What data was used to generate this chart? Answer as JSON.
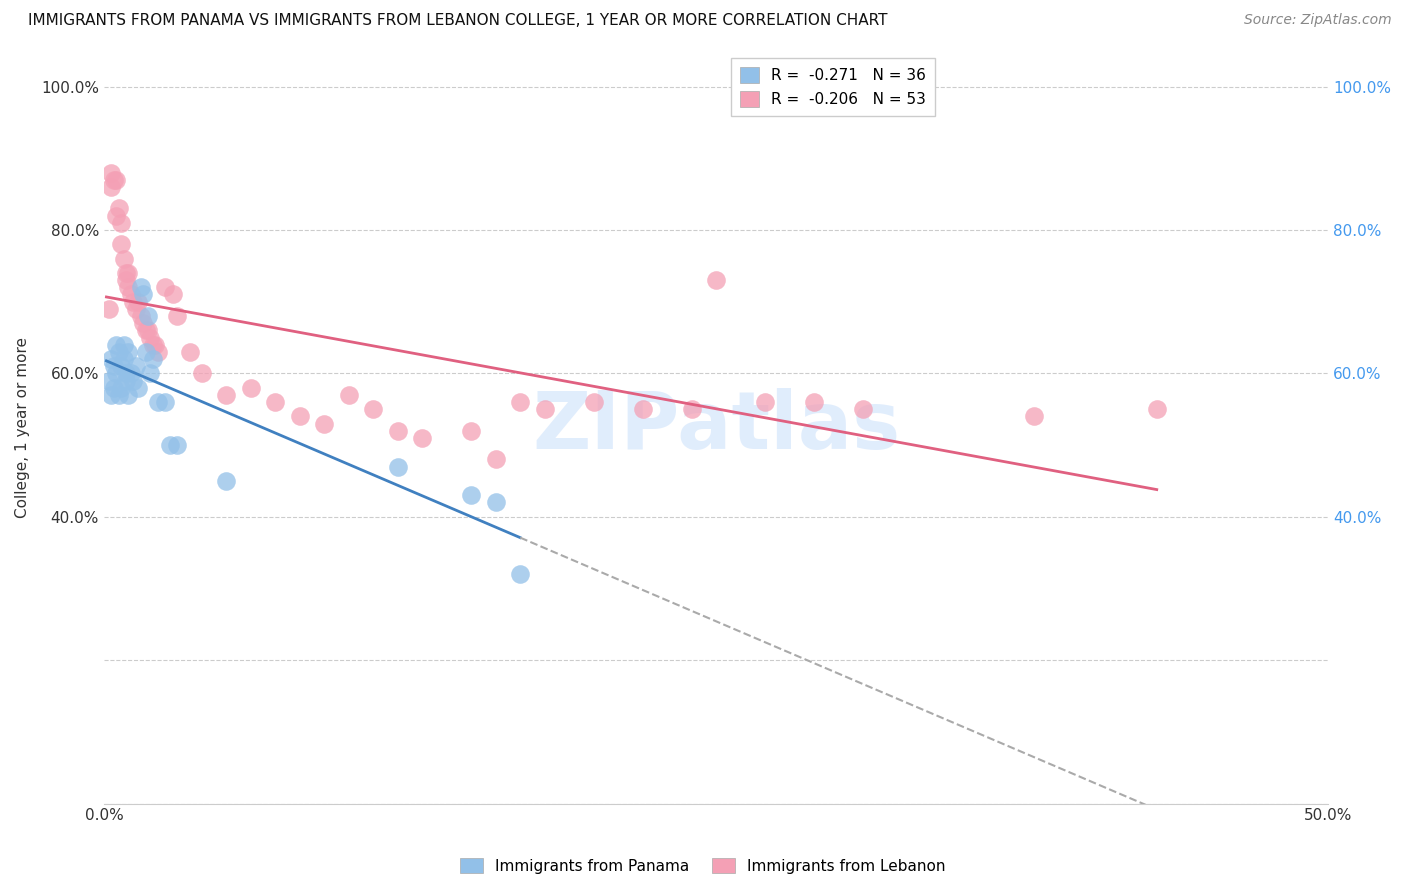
{
  "title": "IMMIGRANTS FROM PANAMA VS IMMIGRANTS FROM LEBANON COLLEGE, 1 YEAR OR MORE CORRELATION CHART",
  "source": "Source: ZipAtlas.com",
  "ylabel": "College, 1 year or more",
  "xlim": [
    0.0,
    0.5
  ],
  "ylim": [
    0.0,
    1.05
  ],
  "xticks": [
    0.0,
    0.05,
    0.1,
    0.15,
    0.2,
    0.25,
    0.3,
    0.35,
    0.4,
    0.45,
    0.5
  ],
  "xticklabels": [
    "0.0%",
    "",
    "",
    "",
    "",
    "",
    "",
    "",
    "",
    "",
    "50.0%"
  ],
  "yticks_left": [
    0.0,
    0.2,
    0.4,
    0.6,
    0.8,
    1.0
  ],
  "yticklabels_left": [
    "",
    "",
    "40.0%",
    "60.0%",
    "80.0%",
    "100.0%"
  ],
  "yticks_right": [
    0.4,
    0.6,
    0.8,
    1.0
  ],
  "yticklabels_right": [
    "40.0%",
    "60.0%",
    "80.0%",
    "100.0%"
  ],
  "legend_panama": "R =  -0.271   N = 36",
  "legend_lebanon": "R =  -0.206   N = 53",
  "color_panama": "#92C0E8",
  "color_lebanon": "#F4A0B5",
  "line_color_panama": "#4080C0",
  "line_color_lebanon": "#E06080",
  "line_color_dash": "#AAAAAA",
  "watermark": "ZIPatlas",
  "panama_x": [
    0.002,
    0.003,
    0.003,
    0.004,
    0.004,
    0.005,
    0.005,
    0.006,
    0.006,
    0.007,
    0.007,
    0.008,
    0.008,
    0.009,
    0.009,
    0.01,
    0.01,
    0.011,
    0.012,
    0.013,
    0.014,
    0.015,
    0.016,
    0.017,
    0.018,
    0.019,
    0.02,
    0.022,
    0.025,
    0.027,
    0.03,
    0.05,
    0.12,
    0.15,
    0.16,
    0.17
  ],
  "panama_y": [
    0.59,
    0.57,
    0.62,
    0.61,
    0.58,
    0.64,
    0.6,
    0.63,
    0.57,
    0.61,
    0.58,
    0.64,
    0.62,
    0.59,
    0.6,
    0.63,
    0.57,
    0.6,
    0.59,
    0.61,
    0.58,
    0.72,
    0.71,
    0.63,
    0.68,
    0.6,
    0.62,
    0.56,
    0.56,
    0.5,
    0.5,
    0.45,
    0.47,
    0.43,
    0.42,
    0.32
  ],
  "lebanon_x": [
    0.002,
    0.003,
    0.003,
    0.004,
    0.005,
    0.005,
    0.006,
    0.007,
    0.007,
    0.008,
    0.009,
    0.009,
    0.01,
    0.01,
    0.011,
    0.012,
    0.013,
    0.014,
    0.015,
    0.016,
    0.017,
    0.018,
    0.019,
    0.02,
    0.021,
    0.022,
    0.025,
    0.028,
    0.03,
    0.035,
    0.04,
    0.05,
    0.06,
    0.07,
    0.08,
    0.09,
    0.1,
    0.11,
    0.12,
    0.13,
    0.15,
    0.16,
    0.17,
    0.18,
    0.2,
    0.22,
    0.24,
    0.25,
    0.27,
    0.29,
    0.31,
    0.38,
    0.43
  ],
  "lebanon_y": [
    0.69,
    0.86,
    0.88,
    0.87,
    0.87,
    0.82,
    0.83,
    0.81,
    0.78,
    0.76,
    0.74,
    0.73,
    0.72,
    0.74,
    0.71,
    0.7,
    0.69,
    0.7,
    0.68,
    0.67,
    0.66,
    0.66,
    0.65,
    0.64,
    0.64,
    0.63,
    0.72,
    0.71,
    0.68,
    0.63,
    0.6,
    0.57,
    0.58,
    0.56,
    0.54,
    0.53,
    0.57,
    0.55,
    0.52,
    0.51,
    0.52,
    0.48,
    0.56,
    0.55,
    0.56,
    0.55,
    0.55,
    0.73,
    0.56,
    0.56,
    0.55,
    0.54,
    0.55
  ],
  "panama_line_x_start": 0.001,
  "panama_line_x_solid_end": 0.17,
  "panama_line_x_dash_end": 0.44,
  "lebanon_line_x_start": 0.001,
  "lebanon_line_x_end": 0.43
}
